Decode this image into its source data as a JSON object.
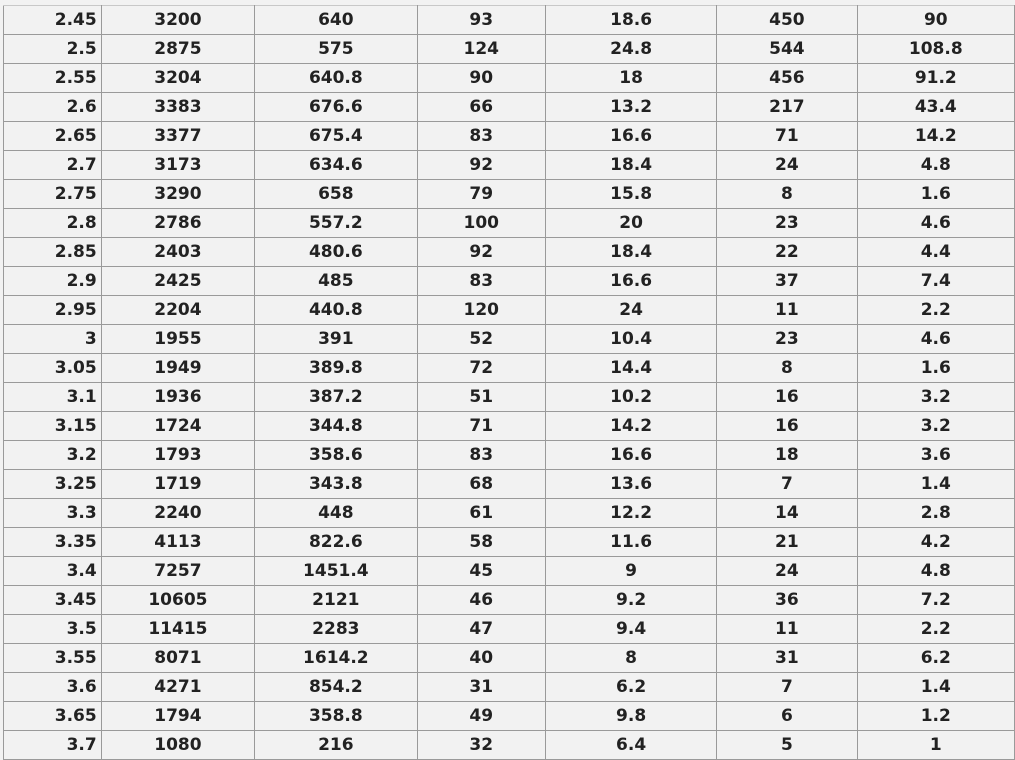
{
  "rows": [
    [
      "2.45",
      "3200",
      "640",
      "93",
      "18.6",
      "450",
      "90"
    ],
    [
      "2.5",
      "2875",
      "575",
      "124",
      "24.8",
      "544",
      "108.8"
    ],
    [
      "2.55",
      "3204",
      "640.8",
      "90",
      "18",
      "456",
      "91.2"
    ],
    [
      "2.6",
      "3383",
      "676.6",
      "66",
      "13.2",
      "217",
      "43.4"
    ],
    [
      "2.65",
      "3377",
      "675.4",
      "83",
      "16.6",
      "71",
      "14.2"
    ],
    [
      "2.7",
      "3173",
      "634.6",
      "92",
      "18.4",
      "24",
      "4.8"
    ],
    [
      "2.75",
      "3290",
      "658",
      "79",
      "15.8",
      "8",
      "1.6"
    ],
    [
      "2.8",
      "2786",
      "557.2",
      "100",
      "20",
      "23",
      "4.6"
    ],
    [
      "2.85",
      "2403",
      "480.6",
      "92",
      "18.4",
      "22",
      "4.4"
    ],
    [
      "2.9",
      "2425",
      "485",
      "83",
      "16.6",
      "37",
      "7.4"
    ],
    [
      "2.95",
      "2204",
      "440.8",
      "120",
      "24",
      "11",
      "2.2"
    ],
    [
      "3",
      "1955",
      "391",
      "52",
      "10.4",
      "23",
      "4.6"
    ],
    [
      "3.05",
      "1949",
      "389.8",
      "72",
      "14.4",
      "8",
      "1.6"
    ],
    [
      "3.1",
      "1936",
      "387.2",
      "51",
      "10.2",
      "16",
      "3.2"
    ],
    [
      "3.15",
      "1724",
      "344.8",
      "71",
      "14.2",
      "16",
      "3.2"
    ],
    [
      "3.2",
      "1793",
      "358.6",
      "83",
      "16.6",
      "18",
      "3.6"
    ],
    [
      "3.25",
      "1719",
      "343.8",
      "68",
      "13.6",
      "7",
      "1.4"
    ],
    [
      "3.3",
      "2240",
      "448",
      "61",
      "12.2",
      "14",
      "2.8"
    ],
    [
      "3.35",
      "4113",
      "822.6",
      "58",
      "11.6",
      "21",
      "4.2"
    ],
    [
      "3.4",
      "7257",
      "1451.4",
      "45",
      "9",
      "24",
      "4.8"
    ],
    [
      "3.45",
      "10605",
      "2121",
      "46",
      "9.2",
      "36",
      "7.2"
    ],
    [
      "3.5",
      "11415",
      "2283",
      "47",
      "9.4",
      "11",
      "2.2"
    ],
    [
      "3.55",
      "8071",
      "1614.2",
      "40",
      "8",
      "31",
      "6.2"
    ],
    [
      "3.6",
      "4271",
      "854.2",
      "31",
      "6.2",
      "7",
      "1.4"
    ],
    [
      "3.65",
      "1794",
      "358.8",
      "49",
      "9.8",
      "6",
      "1.2"
    ],
    [
      "3.7",
      "1080",
      "216",
      "32",
      "6.4",
      "5",
      "1"
    ]
  ]
}
